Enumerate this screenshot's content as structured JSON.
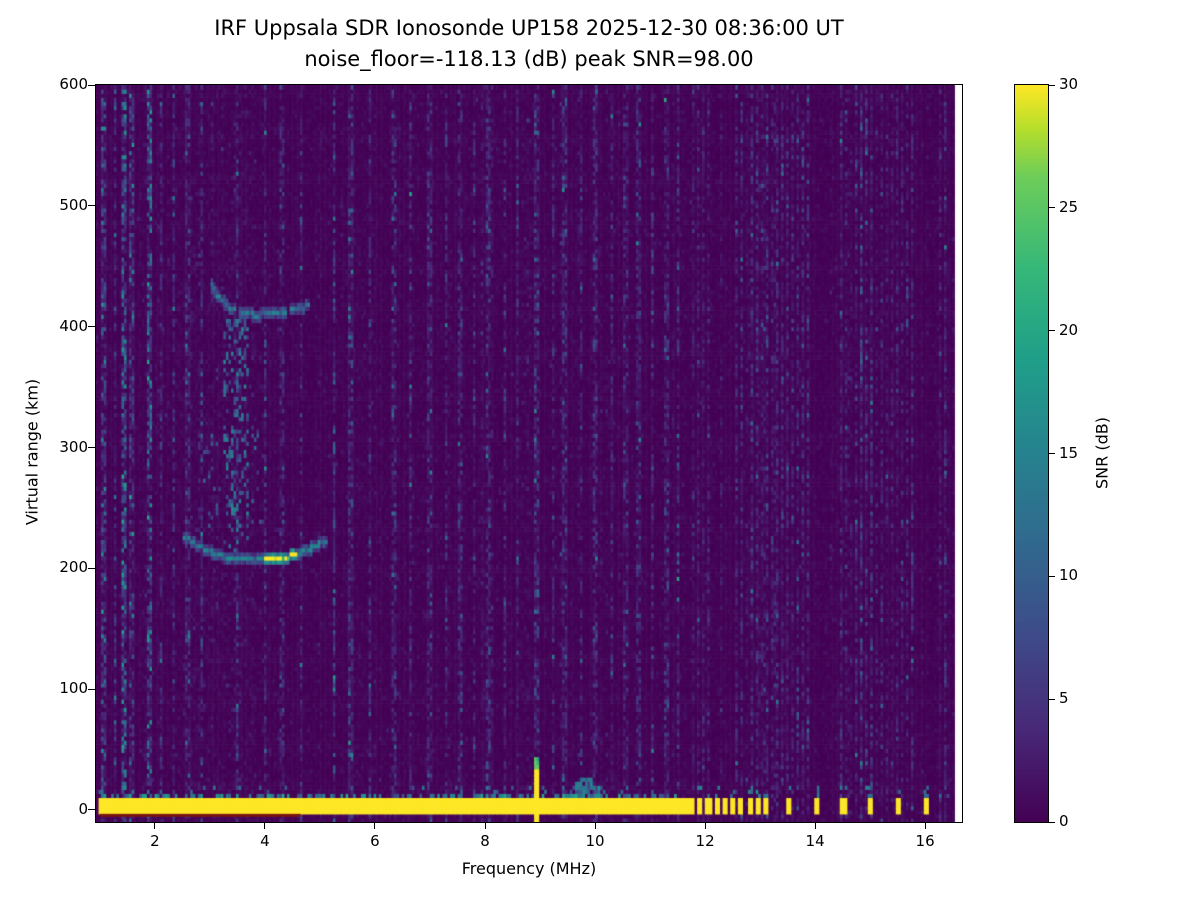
{
  "chart_data": {
    "type": "heatmap",
    "title": "IRF Uppsala SDR Ionosonde UP158 2025-12-30 08:36:00  UT",
    "subtitle": "noise_floor=-118.13 (dB) peak SNR=98.00",
    "xlabel": "Frequency (MHz)",
    "ylabel": "Virtual range (km)",
    "xlim": [
      0.93,
      16.67
    ],
    "ylim": [
      -10,
      600
    ],
    "xticks": [
      2,
      4,
      6,
      8,
      10,
      12,
      14,
      16
    ],
    "yticks": [
      0,
      100,
      200,
      300,
      400,
      500,
      600
    ],
    "data_freq_end": 16.55,
    "colorbar": {
      "label": "SNR (dB)",
      "min": 0,
      "max": 30,
      "ticks": [
        0,
        5,
        10,
        15,
        20,
        25,
        30
      ],
      "colormap": "viridis"
    },
    "noise": {
      "seed": 42,
      "base_scale": 0.75
    },
    "rfi_columns": [
      {
        "freq": 1.07,
        "intensity": 5
      },
      {
        "freq": 1.28,
        "intensity": 3
      },
      {
        "freq": 1.45,
        "intensity": 8
      },
      {
        "freq": 1.57,
        "intensity": 4
      },
      {
        "freq": 1.9,
        "intensity": 7
      },
      {
        "freq": 2.1,
        "intensity": 2.5
      },
      {
        "freq": 2.35,
        "intensity": 3
      },
      {
        "freq": 2.6,
        "intensity": 2.5
      },
      {
        "freq": 2.85,
        "intensity": 3
      },
      {
        "freq": 3.5,
        "intensity": 3
      },
      {
        "freq": 4.0,
        "intensity": 2.5
      },
      {
        "freq": 4.3,
        "intensity": 2.5
      },
      {
        "freq": 4.65,
        "intensity": 2.5
      },
      {
        "freq": 5.25,
        "intensity": 4.5
      },
      {
        "freq": 5.55,
        "intensity": 3
      },
      {
        "freq": 5.9,
        "intensity": 2.5
      },
      {
        "freq": 6.35,
        "intensity": 3
      },
      {
        "freq": 6.65,
        "intensity": 2.5
      },
      {
        "freq": 7.0,
        "intensity": 3
      },
      {
        "freq": 7.3,
        "intensity": 2.5
      },
      {
        "freq": 7.55,
        "intensity": 2.5
      },
      {
        "freq": 7.8,
        "intensity": 2.5
      },
      {
        "freq": 8.05,
        "intensity": 3
      },
      {
        "freq": 8.35,
        "intensity": 2.5
      },
      {
        "freq": 8.6,
        "intensity": 2.5
      },
      {
        "freq": 8.95,
        "intensity": 3.5
      },
      {
        "freq": 9.25,
        "intensity": 2.5
      },
      {
        "freq": 9.45,
        "intensity": 3
      },
      {
        "freq": 9.75,
        "intensity": 2.5
      },
      {
        "freq": 10.0,
        "intensity": 3
      },
      {
        "freq": 10.3,
        "intensity": 2.5
      },
      {
        "freq": 10.55,
        "intensity": 2.5
      },
      {
        "freq": 10.8,
        "intensity": 2.5
      },
      {
        "freq": 11.05,
        "intensity": 2.5
      },
      {
        "freq": 11.3,
        "intensity": 2.5
      },
      {
        "freq": 11.5,
        "intensity": 2.5
      }
    ],
    "hf_stripe_region": {
      "start": 11.7,
      "end": 16.45,
      "spacing": 0.095,
      "intensity": 2.2
    },
    "bottom_band": {
      "freq_start": 1.0,
      "freq_end": 11.72,
      "center_km": 4,
      "half_width_km": 6.5,
      "value": 30
    },
    "baseline_strip": {
      "freq_start": 1.0,
      "freq_end": 4.65,
      "km": -4.5,
      "color": "#7a1511"
    },
    "bottom_spikes": {
      "freqs": [
        11.78,
        11.92,
        12.06,
        12.21,
        12.36,
        12.51,
        12.66,
        12.82,
        12.97,
        13.1,
        13.52,
        14.02,
        14.52,
        15.0,
        15.53,
        16.03
      ],
      "value": 30,
      "half_width_km": 6.5
    },
    "tall_spike": {
      "freq": 8.95,
      "top_km": 42,
      "value": 30
    },
    "e_bump": {
      "freq_start": 9.5,
      "freq_end": 10.2,
      "top_km": 16,
      "value": 13
    },
    "traces": [
      {
        "name": "F-region echo first hop",
        "points": [
          [
            2.55,
            226
          ],
          [
            2.9,
            216
          ],
          [
            3.2,
            211
          ],
          [
            3.5,
            208
          ],
          [
            3.9,
            207
          ],
          [
            4.2,
            208
          ],
          [
            4.5,
            211
          ],
          [
            4.8,
            216
          ],
          [
            5.1,
            223
          ]
        ],
        "intensity": 13,
        "bright": {
          "freq_start": 4.0,
          "freq_end": 4.55,
          "intensity": 29
        }
      },
      {
        "name": "F-region echo second reflection",
        "points": [
          [
            3.02,
            436
          ],
          [
            3.15,
            425
          ],
          [
            3.35,
            416
          ],
          [
            3.6,
            411
          ],
          [
            3.85,
            410
          ],
          [
            4.1,
            411
          ],
          [
            4.35,
            413
          ],
          [
            4.6,
            415
          ],
          [
            4.78,
            418
          ]
        ],
        "intensity": 12
      }
    ],
    "spread_regions": [
      {
        "freq_start": 3.25,
        "freq_end": 3.7,
        "km_start": 215,
        "km_end": 405,
        "density": 0.3,
        "intensity": 12
      },
      {
        "freq_start": 2.8,
        "freq_end": 3.15,
        "km_start": 235,
        "km_end": 310,
        "density": 0.12,
        "intensity": 9
      },
      {
        "freq_start": 3.7,
        "freq_end": 3.95,
        "km_start": 240,
        "km_end": 330,
        "density": 0.08,
        "intensity": 9
      }
    ]
  }
}
